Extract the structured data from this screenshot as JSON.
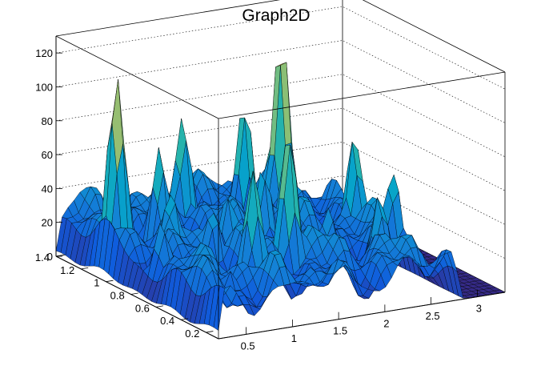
{
  "chart_data": {
    "type": "surface3d",
    "title": "Graph2D",
    "xlabel": "",
    "ylabel": "",
    "zlabel": "",
    "xlim": [
      0.2,
      3.3
    ],
    "ylim": [
      0.1,
      1.4
    ],
    "zlim": [
      0,
      130
    ],
    "x_ticks": [
      "0.5",
      "1",
      "1.5",
      "2",
      "2.5",
      "3"
    ],
    "y_ticks": [
      "0.2",
      "0.4",
      "0.6",
      "0.8",
      "1",
      "1.2",
      "1.4"
    ],
    "z_ticks": [
      "0",
      "20",
      "40",
      "60",
      "80",
      "100",
      "120"
    ],
    "grid": true,
    "colormap": [
      "#352a87",
      "#0f5cdd",
      "#1481d6",
      "#06a4ca",
      "#2eb7a4",
      "#87bf77",
      "#d1bb59",
      "#fec832",
      "#f9fb0e"
    ],
    "peaks": [
      {
        "x": 0.45,
        "y": 1.1,
        "z": 115
      },
      {
        "x": 2.3,
        "y": 1.15,
        "z": 122
      },
      {
        "x": 0.85,
        "y": 1.05,
        "z": 72
      },
      {
        "x": 1.3,
        "y": 1.2,
        "z": 80
      },
      {
        "x": 1.9,
        "y": 1.15,
        "z": 85
      },
      {
        "x": 1.05,
        "y": 0.45,
        "z": 80
      },
      {
        "x": 1.5,
        "y": 0.5,
        "z": 95
      },
      {
        "x": 2.55,
        "y": 0.75,
        "z": 75
      },
      {
        "x": 2.7,
        "y": 0.55,
        "z": 60
      },
      {
        "x": 0.7,
        "y": 0.85,
        "z": 55
      },
      {
        "x": 1.7,
        "y": 0.85,
        "z": 60
      },
      {
        "x": 2.1,
        "y": 0.95,
        "z": 62
      },
      {
        "x": 0.4,
        "y": 0.7,
        "z": 45
      },
      {
        "x": 1.25,
        "y": 0.8,
        "z": 50
      },
      {
        "x": 2.35,
        "y": 0.4,
        "z": 55
      },
      {
        "x": 0.95,
        "y": 0.7,
        "z": 48
      },
      {
        "x": 0.6,
        "y": 0.3,
        "z": 30
      },
      {
        "x": 2.0,
        "y": 0.55,
        "z": 45
      }
    ],
    "base_level": 28,
    "zero_region_x_min": 2.85
  }
}
